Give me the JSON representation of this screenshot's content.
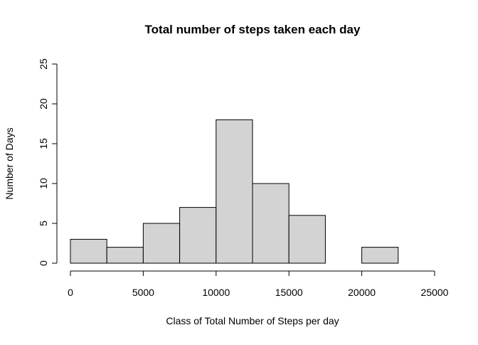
{
  "chart_data": {
    "type": "bar",
    "subtype": "histogram",
    "title": "Total number of steps taken each day",
    "xlabel": "Class of Total Number of Steps per day",
    "ylabel": "Number of Days",
    "bins": [
      {
        "start": 0,
        "end": 2500,
        "count": 3
      },
      {
        "start": 2500,
        "end": 5000,
        "count": 2
      },
      {
        "start": 5000,
        "end": 7500,
        "count": 5
      },
      {
        "start": 7500,
        "end": 10000,
        "count": 7
      },
      {
        "start": 10000,
        "end": 12500,
        "count": 18
      },
      {
        "start": 12500,
        "end": 15000,
        "count": 10
      },
      {
        "start": 15000,
        "end": 17500,
        "count": 6
      },
      {
        "start": 17500,
        "end": 20000,
        "count": 0
      },
      {
        "start": 20000,
        "end": 22500,
        "count": 2
      },
      {
        "start": 22500,
        "end": 25000,
        "count": 0
      }
    ],
    "xlim": [
      0,
      25000
    ],
    "ylim": [
      0,
      25
    ],
    "xticks": [
      "0",
      "5000",
      "10000",
      "15000",
      "20000",
      "25000"
    ],
    "yticks": [
      "0",
      "5",
      "10",
      "15",
      "20",
      "25"
    ],
    "grid": false,
    "bar_fill": "#d3d3d3",
    "bar_stroke": "#000000"
  }
}
